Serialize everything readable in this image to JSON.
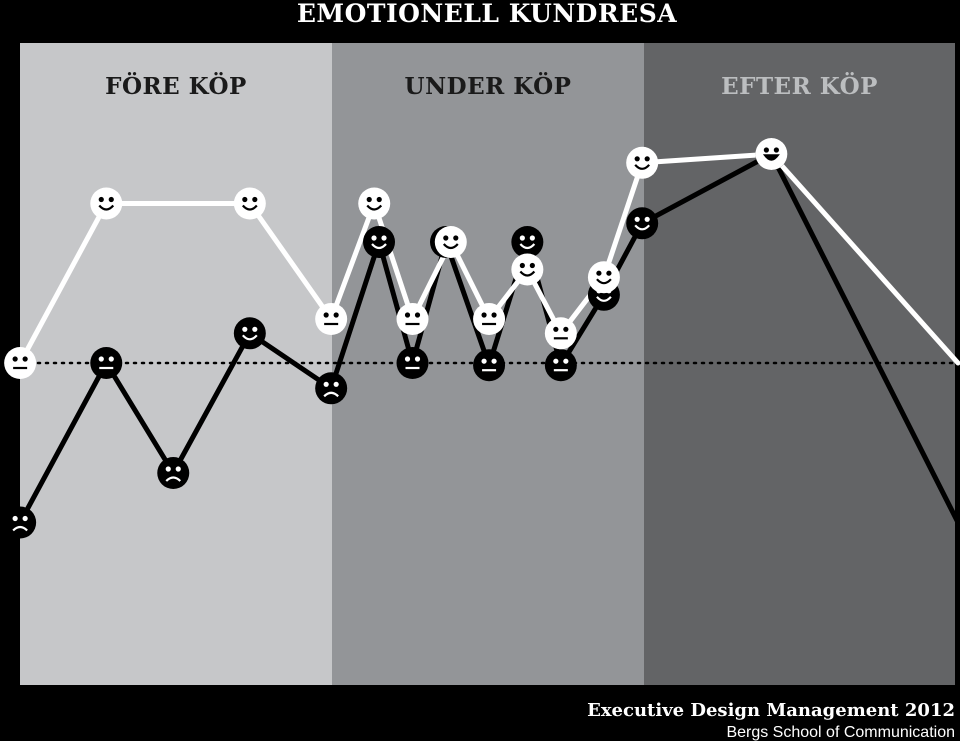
{
  "title": "EMOTIONELL KUNDRESA",
  "footer": {
    "line1": "Executive Design Management 2012",
    "line2": "Bergs School of Communication"
  },
  "chart_data": {
    "type": "line",
    "title": "EMOTIONELL KUNDRESA",
    "phases": [
      {
        "label": "FÖRE KÖP",
        "fill": "#c6c7c9",
        "label_color": "#1a1a1a"
      },
      {
        "label": "UNDER KÖP",
        "fill": "#939598",
        "label_color": "#1a1a1a"
      },
      {
        "label": "EFTER KÖP",
        "fill": "#636466",
        "label_color": "#bcbec0"
      }
    ],
    "x_range": [
      0,
      100
    ],
    "y_range": [
      -2.5,
      2.5
    ],
    "neutral_line": 0,
    "grid": false,
    "series": [
      {
        "color": "#000000",
        "marker_fill": "#000000",
        "marker_face": "#ffffff",
        "points": [
          {
            "x": 2,
            "y": -1.45,
            "mood": "sad"
          },
          {
            "x": 11,
            "y": 0,
            "mood": "neutral"
          },
          {
            "x": 18,
            "y": -1.0,
            "mood": "sad"
          },
          {
            "x": 26,
            "y": 0.27,
            "mood": "happy"
          },
          {
            "x": 34.5,
            "y": -0.23,
            "mood": "sad"
          },
          {
            "x": 39.5,
            "y": 1.1,
            "mood": "happy"
          },
          {
            "x": 43,
            "y": 0,
            "mood": "neutral"
          },
          {
            "x": 46.5,
            "y": 1.1,
            "mood": "happy"
          },
          {
            "x": 51,
            "y": -0.02,
            "mood": "neutral"
          },
          {
            "x": 55,
            "y": 1.1,
            "mood": "happy"
          },
          {
            "x": 58.5,
            "y": -0.02,
            "mood": "neutral"
          },
          {
            "x": 63,
            "y": 0.62,
            "mood": "happy"
          },
          {
            "x": 67,
            "y": 1.27,
            "mood": "happy"
          },
          {
            "x": 80.5,
            "y": 1.9,
            "mood": "happy"
          },
          {
            "x": 100,
            "y": -1.45,
            "mood": null
          }
        ]
      },
      {
        "color": "#ffffff",
        "marker_fill": "#ffffff",
        "marker_face": "#000000",
        "points": [
          {
            "x": 2,
            "y": 0,
            "mood": "neutral"
          },
          {
            "x": 11,
            "y": 1.45,
            "mood": "happy"
          },
          {
            "x": 26,
            "y": 1.45,
            "mood": "happy"
          },
          {
            "x": 34.5,
            "y": 0.4,
            "mood": "neutral"
          },
          {
            "x": 39,
            "y": 1.45,
            "mood": "happy"
          },
          {
            "x": 43,
            "y": 0.4,
            "mood": "neutral"
          },
          {
            "x": 47,
            "y": 1.1,
            "mood": "happy"
          },
          {
            "x": 51,
            "y": 0.4,
            "mood": "neutral"
          },
          {
            "x": 55,
            "y": 0.85,
            "mood": "happy"
          },
          {
            "x": 58.5,
            "y": 0.27,
            "mood": "neutral"
          },
          {
            "x": 63,
            "y": 0.78,
            "mood": "happy"
          },
          {
            "x": 67,
            "y": 1.82,
            "mood": "happy"
          },
          {
            "x": 80.5,
            "y": 1.9,
            "mood": "grin"
          },
          {
            "x": 100,
            "y": 0,
            "mood": null
          }
        ]
      }
    ]
  }
}
